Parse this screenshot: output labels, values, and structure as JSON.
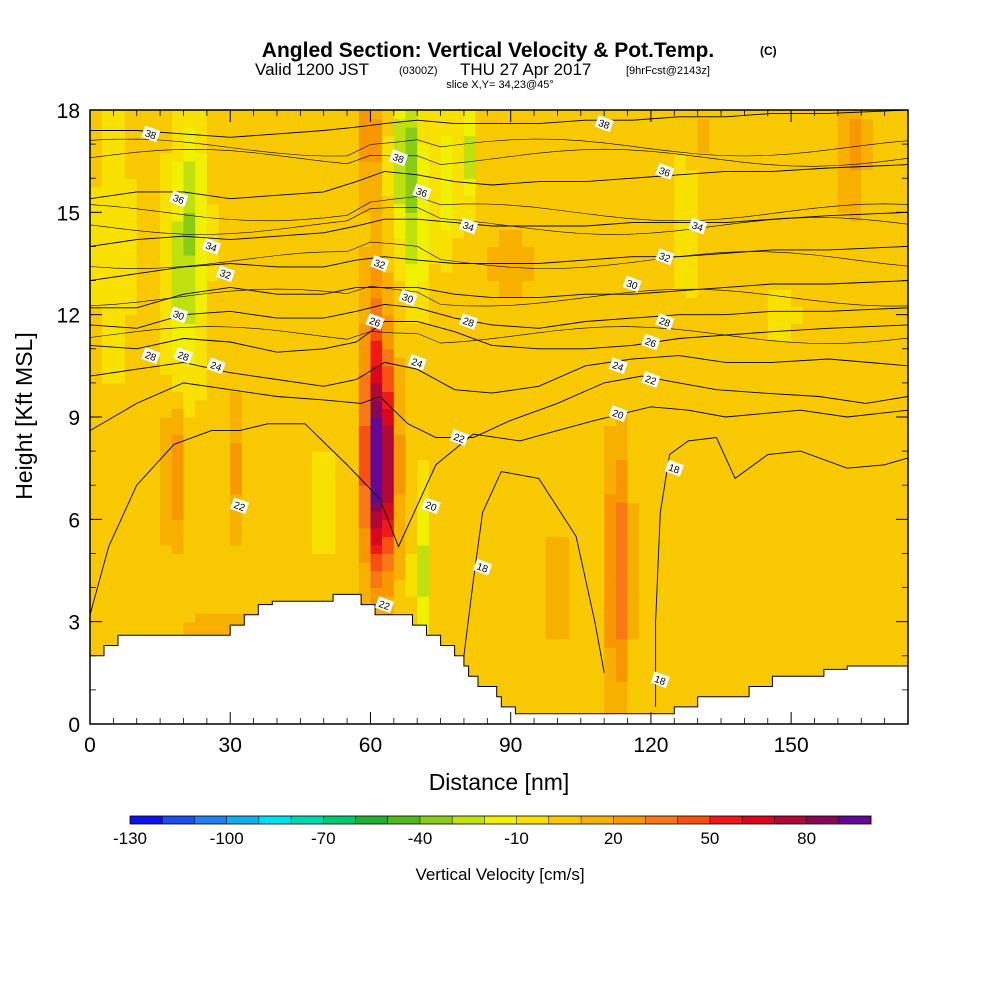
{
  "title": {
    "main": "Angled Section: Vertical Velocity & Pot.Temp.",
    "main_suffix": "(C)",
    "valid": "Valid 1200 JST",
    "valid_z": "(0300Z)",
    "date": "THU 27 Apr 2017",
    "fcst": "[9hrFcst@2143z]",
    "slice": "slice X,Y= 34,23@45°"
  },
  "chart_data": {
    "type": "heatmap",
    "xlabel": "Distance [nm]",
    "ylabel": "Height [Kft MSL]",
    "xlim": [
      0,
      175
    ],
    "ylim": [
      0,
      18
    ],
    "x_ticks": [
      0,
      30,
      60,
      90,
      120,
      150
    ],
    "y_ticks": [
      0,
      3,
      6,
      9,
      12,
      15,
      18
    ],
    "colorbar": {
      "label": "Vertical Velocity [cm/s]",
      "tick_labels": [
        "-130",
        "-100",
        "-70",
        "-40",
        "-10",
        "20",
        "50",
        "80"
      ],
      "tick_values": [
        -130,
        -100,
        -70,
        -40,
        -10,
        20,
        50,
        80
      ],
      "range": [
        -130,
        100
      ],
      "step": 10,
      "colors": [
        "#1010ee",
        "#1a4ef0",
        "#2080f0",
        "#10b0f0",
        "#00e0f0",
        "#00d8b0",
        "#00c870",
        "#20b030",
        "#50b818",
        "#88cc18",
        "#c0e010",
        "#f0f000",
        "#f8e000",
        "#f8c800",
        "#f8b000",
        "#f89800",
        "#f87818",
        "#f85010",
        "#f01818",
        "#d80820",
        "#b00838",
        "#880858",
        "#600898"
      ]
    },
    "contour_labels_theta_c": [
      18,
      20,
      22,
      24,
      26,
      28,
      30,
      32,
      34,
      36,
      38
    ],
    "theta_contours": [
      {
        "label": "18",
        "points": [
          [
            78,
            0.5
          ],
          [
            80,
            2
          ],
          [
            82,
            4.2
          ],
          [
            84,
            6.2
          ],
          [
            88,
            7.4
          ],
          [
            96,
            7.2
          ],
          [
            104,
            5.5
          ],
          [
            108,
            3
          ],
          [
            110,
            1.5
          ]
        ]
      },
      {
        "label": "18",
        "points": [
          [
            121,
            0.5
          ],
          [
            121,
            3
          ],
          [
            122,
            6.2
          ],
          [
            124,
            7.9
          ],
          [
            128,
            8.3
          ],
          [
            134,
            8.4
          ],
          [
            138,
            7.2
          ],
          [
            145,
            7.9
          ],
          [
            152,
            8.0
          ],
          [
            162,
            7.5
          ],
          [
            170,
            7.6
          ],
          [
            175,
            7.8
          ]
        ]
      },
      {
        "label": "20",
        "points": [
          [
            0,
            3.2
          ],
          [
            4,
            5.2
          ],
          [
            10,
            7
          ],
          [
            18,
            8.2
          ],
          [
            26,
            8.6
          ],
          [
            32,
            8.6
          ],
          [
            38,
            8.8
          ],
          [
            46,
            8.8
          ],
          [
            55,
            7.6
          ],
          [
            62,
            6.6
          ],
          [
            66,
            5.2
          ],
          [
            70,
            6.4
          ],
          [
            74,
            7.6
          ],
          [
            82,
            8.5
          ],
          [
            92,
            8.3
          ],
          [
            100,
            8.6
          ],
          [
            108,
            8.9
          ],
          [
            114,
            9.1
          ],
          [
            120,
            9.3
          ],
          [
            128,
            9.2
          ],
          [
            136,
            9.0
          ],
          [
            144,
            9.1
          ],
          [
            152,
            9.2
          ],
          [
            162,
            9.0
          ],
          [
            175,
            9.2
          ]
        ]
      },
      {
        "label": "22",
        "points": [
          [
            0,
            8.6
          ],
          [
            10,
            9.4
          ],
          [
            20,
            10.0
          ],
          [
            30,
            9.8
          ],
          [
            40,
            9.6
          ],
          [
            50,
            9.5
          ],
          [
            58,
            9.4
          ],
          [
            62,
            9.6
          ],
          [
            68,
            8.8
          ],
          [
            74,
            8.4
          ],
          [
            82,
            8.4
          ],
          [
            90,
            8.9
          ],
          [
            100,
            9.4
          ],
          [
            110,
            10.0
          ],
          [
            118,
            10.2
          ],
          [
            126,
            10.0
          ],
          [
            134,
            9.8
          ],
          [
            144,
            9.7
          ],
          [
            156,
            9.6
          ],
          [
            166,
            9.4
          ],
          [
            175,
            9.6
          ]
        ]
      },
      {
        "label": "24",
        "points": [
          [
            0,
            10.2
          ],
          [
            10,
            10.4
          ],
          [
            20,
            10.6
          ],
          [
            30,
            10.3
          ],
          [
            40,
            10.1
          ],
          [
            50,
            9.9
          ],
          [
            57,
            10.1
          ],
          [
            63,
            10.6
          ],
          [
            70,
            10.4
          ],
          [
            78,
            9.8
          ],
          [
            86,
            9.7
          ],
          [
            96,
            9.9
          ],
          [
            106,
            10.5
          ],
          [
            116,
            10.7
          ],
          [
            126,
            10.8
          ],
          [
            136,
            10.6
          ],
          [
            146,
            10.6
          ],
          [
            158,
            10.7
          ],
          [
            175,
            10.5
          ]
        ]
      },
      {
        "label": "26",
        "points": [
          [
            0,
            11.1
          ],
          [
            10,
            11.0
          ],
          [
            20,
            11.3
          ],
          [
            30,
            11.2
          ],
          [
            40,
            10.9
          ],
          [
            50,
            11.0
          ],
          [
            57,
            11.2
          ],
          [
            63,
            11.8
          ],
          [
            70,
            11.8
          ],
          [
            78,
            11.5
          ],
          [
            86,
            11.1
          ],
          [
            96,
            11.0
          ],
          [
            106,
            11.0
          ],
          [
            116,
            11.1
          ],
          [
            126,
            11.3
          ],
          [
            136,
            11.4
          ],
          [
            146,
            11.5
          ],
          [
            158,
            11.6
          ],
          [
            175,
            11.7
          ]
        ]
      },
      {
        "label": "28",
        "points": [
          [
            0,
            11.7
          ],
          [
            10,
            11.6
          ],
          [
            20,
            12.0
          ],
          [
            30,
            12.1
          ],
          [
            40,
            11.9
          ],
          [
            50,
            11.9
          ],
          [
            57,
            12.1
          ],
          [
            63,
            12.3
          ],
          [
            70,
            12.2
          ],
          [
            78,
            11.9
          ],
          [
            86,
            11.7
          ],
          [
            96,
            11.6
          ],
          [
            106,
            11.8
          ],
          [
            116,
            11.9
          ],
          [
            126,
            12.0
          ],
          [
            136,
            12.0
          ],
          [
            146,
            12.1
          ],
          [
            158,
            12.1
          ],
          [
            175,
            12.2
          ]
        ]
      },
      {
        "label": "30",
        "points": [
          [
            0,
            12.2
          ],
          [
            10,
            12.2
          ],
          [
            20,
            12.6
          ],
          [
            30,
            12.8
          ],
          [
            40,
            12.6
          ],
          [
            50,
            12.6
          ],
          [
            57,
            12.8
          ],
          [
            63,
            12.8
          ],
          [
            70,
            12.8
          ],
          [
            78,
            12.6
          ],
          [
            86,
            12.5
          ],
          [
            96,
            12.5
          ],
          [
            106,
            12.6
          ],
          [
            116,
            12.6
          ],
          [
            126,
            12.7
          ],
          [
            136,
            12.8
          ],
          [
            146,
            12.9
          ],
          [
            158,
            12.9
          ],
          [
            175,
            13.0
          ]
        ]
      },
      {
        "label": "32",
        "points": [
          [
            0,
            13.0
          ],
          [
            10,
            13.2
          ],
          [
            20,
            13.4
          ],
          [
            30,
            13.5
          ],
          [
            40,
            13.4
          ],
          [
            50,
            13.4
          ],
          [
            57,
            13.6
          ],
          [
            63,
            13.7
          ],
          [
            70,
            13.6
          ],
          [
            78,
            13.5
          ],
          [
            86,
            13.5
          ],
          [
            96,
            13.5
          ],
          [
            106,
            13.6
          ],
          [
            116,
            13.7
          ],
          [
            126,
            13.7
          ],
          [
            136,
            13.8
          ],
          [
            146,
            13.9
          ],
          [
            158,
            13.9
          ],
          [
            175,
            14.0
          ]
        ]
      },
      {
        "label": "34",
        "points": [
          [
            0,
            14.0
          ],
          [
            10,
            14.2
          ],
          [
            20,
            14.3
          ],
          [
            30,
            14.2
          ],
          [
            40,
            14.3
          ],
          [
            50,
            14.4
          ],
          [
            57,
            14.6
          ],
          [
            63,
            14.8
          ],
          [
            70,
            14.8
          ],
          [
            78,
            14.7
          ],
          [
            86,
            14.6
          ],
          [
            96,
            14.6
          ],
          [
            106,
            14.6
          ],
          [
            116,
            14.7
          ],
          [
            126,
            14.7
          ],
          [
            136,
            14.7
          ],
          [
            146,
            14.8
          ],
          [
            158,
            14.9
          ],
          [
            175,
            15.0
          ]
        ]
      },
      {
        "label": "36",
        "points": [
          [
            0,
            15.4
          ],
          [
            10,
            15.6
          ],
          [
            20,
            15.6
          ],
          [
            30,
            15.4
          ],
          [
            40,
            15.5
          ],
          [
            50,
            15.6
          ],
          [
            57,
            15.9
          ],
          [
            63,
            16.2
          ],
          [
            70,
            16.1
          ],
          [
            78,
            15.9
          ],
          [
            86,
            15.8
          ],
          [
            96,
            15.9
          ],
          [
            106,
            15.9
          ],
          [
            116,
            16.0
          ],
          [
            126,
            16.1
          ],
          [
            136,
            16.2
          ],
          [
            146,
            16.2
          ],
          [
            158,
            16.3
          ],
          [
            175,
            16.4
          ]
        ]
      },
      {
        "label": "38",
        "points": [
          [
            0,
            17.4
          ],
          [
            10,
            17.4
          ],
          [
            20,
            17.3
          ],
          [
            30,
            17.2
          ],
          [
            40,
            17.3
          ],
          [
            50,
            17.4
          ],
          [
            57,
            17.5
          ],
          [
            63,
            17.6
          ],
          [
            70,
            17.7
          ],
          [
            78,
            17.6
          ],
          [
            86,
            17.6
          ],
          [
            96,
            17.6
          ],
          [
            106,
            17.7
          ],
          [
            116,
            17.7
          ],
          [
            126,
            17.8
          ],
          [
            136,
            17.8
          ],
          [
            146,
            17.9
          ],
          [
            158,
            17.9
          ],
          [
            175,
            18.0
          ]
        ]
      }
    ],
    "contour_text_labels": [
      {
        "text": "38",
        "x": 13,
        "y": 17.3
      },
      {
        "text": "36",
        "x": 19,
        "y": 15.4
      },
      {
        "text": "34",
        "x": 26,
        "y": 14.0
      },
      {
        "text": "32",
        "x": 29,
        "y": 13.2
      },
      {
        "text": "30",
        "x": 19,
        "y": 12.0
      },
      {
        "text": "28",
        "x": 13,
        "y": 10.8
      },
      {
        "text": "28",
        "x": 20,
        "y": 10.8
      },
      {
        "text": "24",
        "x": 27,
        "y": 10.5
      },
      {
        "text": "22",
        "x": 32,
        "y": 6.4
      },
      {
        "text": "38",
        "x": 66,
        "y": 16.6
      },
      {
        "text": "36",
        "x": 71,
        "y": 15.6
      },
      {
        "text": "34",
        "x": 81,
        "y": 14.6
      },
      {
        "text": "32",
        "x": 62,
        "y": 13.5
      },
      {
        "text": "30",
        "x": 68,
        "y": 12.5
      },
      {
        "text": "28",
        "x": 81,
        "y": 11.8
      },
      {
        "text": "26",
        "x": 61,
        "y": 11.8
      },
      {
        "text": "24",
        "x": 70,
        "y": 10.6
      },
      {
        "text": "22",
        "x": 79,
        "y": 8.4
      },
      {
        "text": "20",
        "x": 73,
        "y": 6.4
      },
      {
        "text": "22",
        "x": 63,
        "y": 3.5
      },
      {
        "text": "18",
        "x": 84,
        "y": 4.6
      },
      {
        "text": "38",
        "x": 110,
        "y": 17.6
      },
      {
        "text": "36",
        "x": 123,
        "y": 16.2
      },
      {
        "text": "34",
        "x": 130,
        "y": 14.6
      },
      {
        "text": "32",
        "x": 123,
        "y": 13.7
      },
      {
        "text": "30",
        "x": 116,
        "y": 12.9
      },
      {
        "text": "28",
        "x": 123,
        "y": 11.8
      },
      {
        "text": "26",
        "x": 120,
        "y": 11.2
      },
      {
        "text": "24",
        "x": 113,
        "y": 10.5
      },
      {
        "text": "22",
        "x": 120,
        "y": 10.1
      },
      {
        "text": "20",
        "x": 113,
        "y": 9.1
      },
      {
        "text": "18",
        "x": 125,
        "y": 7.5
      },
      {
        "text": "18",
        "x": 122,
        "y": 1.3
      }
    ],
    "terrain": [
      [
        0,
        2.0
      ],
      [
        3,
        2.0
      ],
      [
        3,
        2.3
      ],
      [
        6,
        2.3
      ],
      [
        6,
        2.6
      ],
      [
        30,
        2.6
      ],
      [
        30,
        2.9
      ],
      [
        33,
        2.9
      ],
      [
        33,
        3.2
      ],
      [
        36,
        3.2
      ],
      [
        36,
        3.5
      ],
      [
        39,
        3.5
      ],
      [
        39,
        3.6
      ],
      [
        52,
        3.6
      ],
      [
        52,
        3.8
      ],
      [
        58,
        3.8
      ],
      [
        58,
        3.5
      ],
      [
        61,
        3.5
      ],
      [
        61,
        3.2
      ],
      [
        69,
        3.2
      ],
      [
        69,
        2.9
      ],
      [
        72,
        2.9
      ],
      [
        72,
        2.6
      ],
      [
        75,
        2.6
      ],
      [
        75,
        2.3
      ],
      [
        78,
        2.3
      ],
      [
        78,
        2.0
      ],
      [
        80,
        2.0
      ],
      [
        80,
        1.7
      ],
      [
        81,
        1.7
      ],
      [
        81,
        1.4
      ],
      [
        83,
        1.4
      ],
      [
        83,
        1.1
      ],
      [
        87,
        1.1
      ],
      [
        87,
        0.8
      ],
      [
        88,
        0.8
      ],
      [
        88,
        0.5
      ],
      [
        91,
        0.5
      ],
      [
        91,
        0.3
      ],
      [
        125,
        0.3
      ],
      [
        125,
        0.5
      ],
      [
        130,
        0.5
      ],
      [
        130,
        0.8
      ],
      [
        141,
        0.8
      ],
      [
        141,
        1.1
      ],
      [
        146,
        1.1
      ],
      [
        146,
        1.4
      ],
      [
        157,
        1.4
      ],
      [
        157,
        1.6
      ],
      [
        162,
        1.6
      ],
      [
        162,
        1.7
      ],
      [
        175,
        1.7
      ]
    ],
    "grid": false
  }
}
